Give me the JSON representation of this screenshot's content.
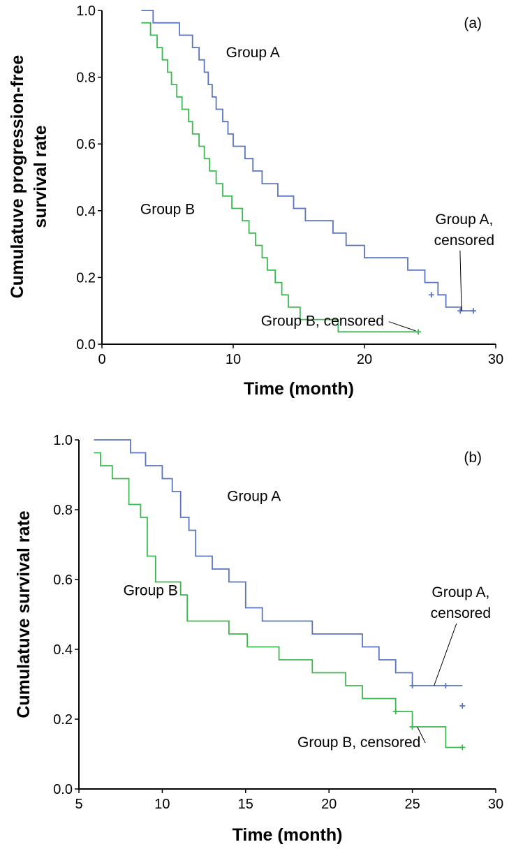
{
  "chart_data": [
    {
      "type": "line",
      "step": true,
      "panel_label": "(a)",
      "title": "",
      "xlabel": "Time (month)",
      "ylabel_lines": [
        "Cumulatuve progression-free",
        "survival rate"
      ],
      "xlim": [
        0,
        30
      ],
      "ylim": [
        0,
        1
      ],
      "xticks": [
        "0",
        "10",
        "20",
        "30"
      ],
      "yticks": [
        "0.0",
        "0.2",
        "0.4",
        "0.6",
        "0.8",
        "1.0"
      ],
      "series": [
        {
          "name": "Group A",
          "color": "#5b74c0",
          "x": [
            3,
            3.9,
            5.9,
            6.9,
            7.4,
            7.8,
            8.1,
            8.4,
            8.7,
            9.2,
            9.6,
            10.0,
            10.9,
            11.5,
            12.2,
            13.4,
            14.6,
            15.5,
            17.6,
            18.6,
            20.0,
            23.3,
            24.6,
            25.6,
            26.2,
            27.4,
            28.3
          ],
          "y": [
            1.0,
            0.963,
            0.926,
            0.889,
            0.852,
            0.815,
            0.778,
            0.741,
            0.704,
            0.667,
            0.63,
            0.593,
            0.556,
            0.519,
            0.481,
            0.444,
            0.407,
            0.37,
            0.333,
            0.296,
            0.259,
            0.222,
            0.185,
            0.148,
            0.111,
            0.1,
            0.1
          ],
          "censored": [
            [
              25.1,
              0.148
            ],
            [
              27.3,
              0.1
            ],
            [
              28.3,
              0.1
            ]
          ]
        },
        {
          "name": "Group B",
          "color": "#3cb850",
          "x": [
            3,
            3.7,
            4.2,
            4.6,
            5.0,
            5.3,
            5.7,
            6.1,
            6.6,
            6.9,
            7.4,
            7.8,
            8.2,
            8.7,
            9.2,
            9.9,
            10.7,
            11.2,
            11.7,
            12.2,
            12.6,
            13.2,
            13.7,
            14.2,
            15.1,
            16.5,
            18.0,
            20.0,
            21.4,
            23.9,
            24.1
          ],
          "y": [
            0.963,
            0.926,
            0.889,
            0.852,
            0.815,
            0.778,
            0.741,
            0.704,
            0.667,
            0.63,
            0.593,
            0.556,
            0.519,
            0.481,
            0.444,
            0.407,
            0.37,
            0.333,
            0.296,
            0.259,
            0.222,
            0.185,
            0.148,
            0.111,
            0.074,
            0.074,
            0.037,
            0.037,
            0.037,
            0.037,
            0.037
          ],
          "censored": [
            [
              24.1,
              0.037
            ]
          ]
        }
      ],
      "annotations": [
        {
          "text": "Group A",
          "x": 11.5,
          "y": 0.86
        },
        {
          "text": "Group B",
          "x": 5.0,
          "y": 0.39
        },
        {
          "text_lines": [
            "Group A,",
            "censored"
          ],
          "x": 27.6,
          "y": 0.36,
          "arrow_to": [
            27.4,
            0.1
          ]
        },
        {
          "text": "Group B, censored",
          "x": 16.8,
          "y": 0.055,
          "arrow_to": [
            23.9,
            0.04
          ]
        }
      ]
    },
    {
      "type": "line",
      "step": true,
      "panel_label": "(b)",
      "title": "",
      "xlabel": "Time (month)",
      "ylabel_lines": [
        "Cumulatuve survival rate"
      ],
      "xlim": [
        5,
        30
      ],
      "ylim": [
        0,
        1
      ],
      "xticks": [
        "5",
        "10",
        "15",
        "20",
        "25",
        "30"
      ],
      "yticks": [
        "0.0",
        "0.2",
        "0.4",
        "0.6",
        "0.8",
        "1.0"
      ],
      "series": [
        {
          "name": "Group A",
          "color": "#5b74c0",
          "x": [
            5.9,
            8.1,
            9.0,
            10.0,
            10.6,
            11.1,
            11.6,
            12.0,
            13.0,
            14.0,
            15.0,
            16.0,
            19.0,
            22.0,
            23.0,
            24.0,
            25.0,
            28.0
          ],
          "y": [
            1.0,
            0.963,
            0.926,
            0.889,
            0.852,
            0.778,
            0.741,
            0.667,
            0.63,
            0.593,
            0.519,
            0.481,
            0.444,
            0.407,
            0.37,
            0.333,
            0.296,
            0.296
          ],
          "censored": [
            [
              25.0,
              0.296
            ],
            [
              27.0,
              0.296
            ],
            [
              28.0,
              0.238
            ]
          ]
        },
        {
          "name": "Group B",
          "color": "#3cb850",
          "x": [
            5.9,
            6.3,
            7.0,
            8.0,
            8.7,
            9.1,
            9.6,
            11.1,
            11.5,
            14.0,
            15.1,
            17.0,
            19.0,
            21.0,
            22.0,
            24.0,
            25.0,
            27.0,
            28.0
          ],
          "y": [
            0.963,
            0.926,
            0.889,
            0.815,
            0.778,
            0.667,
            0.593,
            0.556,
            0.481,
            0.444,
            0.407,
            0.37,
            0.333,
            0.296,
            0.259,
            0.222,
            0.178,
            0.119,
            0.119
          ],
          "censored": [
            [
              24.0,
              0.222
            ],
            [
              25.0,
              0.178
            ],
            [
              28.0,
              0.119
            ]
          ]
        }
      ],
      "annotations": [
        {
          "text": "Group A",
          "x": 15.5,
          "y": 0.825
        },
        {
          "text": "Group B",
          "x": 9.3,
          "y": 0.555
        },
        {
          "text_lines": [
            "Group A,",
            "censored"
          ],
          "x": 27.9,
          "y": 0.55,
          "arrow_to": [
            26.3,
            0.296
          ]
        },
        {
          "text": "Group B, censored",
          "x": 21.8,
          "y": 0.12,
          "arrow_to": [
            25.3,
            0.178
          ]
        }
      ]
    }
  ]
}
